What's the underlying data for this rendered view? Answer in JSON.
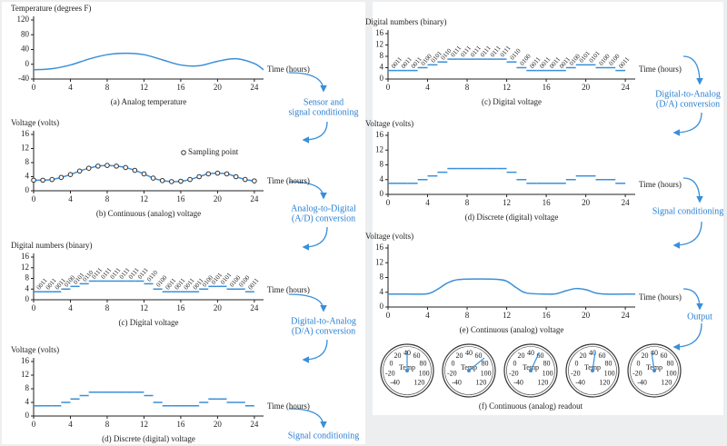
{
  "chart_data": [
    {
      "type": "line",
      "title": "Temperature (degrees F)",
      "xlabel": "Time (hours)",
      "caption": "(a) Analog temperature",
      "x": [
        0,
        2,
        4,
        6,
        8,
        10,
        12,
        14,
        16,
        18,
        20,
        22,
        24,
        25
      ],
      "series": [
        {
          "color": "#3a8fd9",
          "values": [
            -15,
            -12,
            -2,
            14,
            26,
            30,
            26,
            12,
            -2,
            -4,
            8,
            15,
            2,
            -15
          ]
        }
      ],
      "xlim": [
        0,
        25
      ],
      "ylim": [
        -40,
        120
      ],
      "xticks": [
        0,
        4,
        8,
        12,
        16,
        20,
        24
      ],
      "yticks": [
        -40,
        0,
        40,
        80,
        120
      ]
    },
    {
      "type": "line",
      "markers": true,
      "title": "Voltage (volts)",
      "xlabel": "Time (hours)",
      "caption": "(b) Continuous (analog) voltage",
      "x": [
        0,
        1,
        2,
        3,
        4,
        5,
        6,
        7,
        8,
        9,
        10,
        11,
        12,
        13,
        14,
        15,
        16,
        17,
        18,
        19,
        20,
        21,
        22,
        23,
        24
      ],
      "series": [
        {
          "name": "Sampling point",
          "color": "#3a8fd9",
          "values": [
            3,
            3,
            3.2,
            3.8,
            4.6,
            5.6,
            6.4,
            7,
            7.2,
            7,
            6.6,
            5.8,
            4.8,
            3.6,
            2.9,
            2.6,
            2.7,
            3.2,
            4,
            4.8,
            5,
            4.8,
            4,
            3.2,
            2.8
          ]
        }
      ],
      "xlim": [
        0,
        25
      ],
      "ylim": [
        0,
        16
      ],
      "xticks": [
        0,
        4,
        8,
        12,
        16,
        20,
        24
      ],
      "yticks": [
        0,
        4,
        8,
        12,
        16
      ]
    },
    {
      "type": "step",
      "title": "Digital numbers (binary)",
      "xlabel": "Time (hours)",
      "caption": "(c) Digital voltage",
      "x": [
        0,
        1,
        2,
        3,
        4,
        5,
        6,
        7,
        8,
        9,
        10,
        11,
        12,
        13,
        14,
        15,
        16,
        17,
        18,
        19,
        20,
        21,
        22,
        23
      ],
      "series": [
        {
          "color": "#3a8fd9",
          "values": [
            3,
            3,
            3,
            4,
            5,
            6,
            7,
            7,
            7,
            7,
            7,
            7,
            6,
            4,
            3,
            3,
            3,
            3,
            4,
            5,
            5,
            4,
            4,
            3
          ],
          "value_labels": [
            "0011",
            "0011",
            "0011",
            "0100",
            "0101",
            "0110",
            "0111",
            "0111",
            "0111",
            "0111",
            "0111",
            "0111",
            "0110",
            "0100",
            "0011",
            "0011",
            "0011",
            "0011",
            "0100",
            "0101",
            "0101",
            "0100",
            "0100",
            "0011"
          ]
        }
      ],
      "xlim": [
        0,
        25
      ],
      "ylim": [
        0,
        16
      ],
      "xticks": [
        0,
        4,
        8,
        12,
        16,
        20,
        24
      ],
      "yticks": [
        0,
        4,
        8,
        12,
        16
      ]
    },
    {
      "type": "step",
      "title": "Voltage (volts)",
      "xlabel": "Time (hours)",
      "caption": "(d) Discrete (digital) voltage",
      "x": [
        0,
        1,
        2,
        3,
        4,
        5,
        6,
        7,
        8,
        9,
        10,
        11,
        12,
        13,
        14,
        15,
        16,
        17,
        18,
        19,
        20,
        21,
        22,
        23
      ],
      "series": [
        {
          "color": "#3a8fd9",
          "values": [
            3,
            3,
            3,
            4,
            5,
            6,
            7,
            7,
            7,
            7,
            7,
            7,
            6,
            4,
            3,
            3,
            3,
            3,
            4,
            5,
            5,
            4,
            4,
            3
          ]
        }
      ],
      "xlim": [
        0,
        25
      ],
      "ylim": [
        0,
        16
      ],
      "xticks": [
        0,
        4,
        8,
        12,
        16,
        20,
        24
      ],
      "yticks": [
        0,
        4,
        8,
        12,
        16
      ]
    },
    {
      "type": "step",
      "title": "Digital numbers (binary)",
      "xlabel": "Time (hours)",
      "caption": "(c) Digital voltage",
      "x": [
        0,
        1,
        2,
        3,
        4,
        5,
        6,
        7,
        8,
        9,
        10,
        11,
        12,
        13,
        14,
        15,
        16,
        17,
        18,
        19,
        20,
        21,
        22,
        23
      ],
      "series": [
        {
          "color": "#3a8fd9",
          "values": [
            3,
            3,
            3,
            4,
            5,
            6,
            7,
            7,
            7,
            7,
            7,
            7,
            6,
            4,
            3,
            3,
            3,
            3,
            4,
            5,
            5,
            4,
            4,
            3
          ],
          "value_labels": [
            "0011",
            "0011",
            "0011",
            "0100",
            "0101",
            "0110",
            "0111",
            "0111",
            "0111",
            "0111",
            "0111",
            "0111",
            "0110",
            "0100",
            "0011",
            "0011",
            "0011",
            "0011",
            "0100",
            "0101",
            "0101",
            "0100",
            "0100",
            "0011"
          ]
        }
      ],
      "xlim": [
        0,
        25
      ],
      "ylim": [
        0,
        16
      ],
      "xticks": [
        0,
        4,
        8,
        12,
        16,
        20,
        24
      ],
      "yticks": [
        0,
        4,
        8,
        12,
        16
      ]
    },
    {
      "type": "step",
      "title": "Voltage (volts)",
      "xlabel": "Time (hours)",
      "caption": "(d) Discrete (digital) voltage",
      "x": [
        0,
        1,
        2,
        3,
        4,
        5,
        6,
        7,
        8,
        9,
        10,
        11,
        12,
        13,
        14,
        15,
        16,
        17,
        18,
        19,
        20,
        21,
        22,
        23
      ],
      "series": [
        {
          "color": "#3a8fd9",
          "values": [
            3,
            3,
            3,
            4,
            5,
            6,
            7,
            7,
            7,
            7,
            7,
            7,
            6,
            4,
            3,
            3,
            3,
            3,
            4,
            5,
            5,
            4,
            4,
            3
          ]
        }
      ],
      "xlim": [
        0,
        25
      ],
      "ylim": [
        0,
        16
      ],
      "xticks": [
        0,
        4,
        8,
        12,
        16,
        20,
        24
      ],
      "yticks": [
        0,
        4,
        8,
        12,
        16
      ]
    },
    {
      "type": "line",
      "title": "Voltage (volts)",
      "xlabel": "Time (hours)",
      "caption": "(e) Continuous (analog) voltage",
      "x": [
        0,
        2,
        4,
        5,
        6,
        7,
        9,
        11,
        12,
        13,
        14,
        16,
        17,
        18,
        19,
        20,
        21,
        22,
        24,
        25
      ],
      "series": [
        {
          "color": "#3a8fd9",
          "values": [
            3.5,
            3.5,
            3.6,
            4.8,
            6.5,
            7.4,
            7.6,
            7.5,
            7,
            5.2,
            3.8,
            3.5,
            3.6,
            4.4,
            5,
            4.7,
            3.8,
            3.5,
            3.5,
            3.5
          ]
        }
      ],
      "xlim": [
        0,
        25
      ],
      "ylim": [
        0,
        16
      ],
      "xticks": [
        0,
        4,
        8,
        12,
        16,
        20,
        24
      ],
      "yticks": [
        0,
        4,
        8,
        12,
        16
      ]
    }
  ],
  "flow": [
    {
      "lines": [
        "Sensor and",
        "signal conditioning"
      ]
    },
    {
      "lines": [
        "Analog-to-Digital",
        "(A/D) conversion"
      ]
    },
    {
      "lines": [
        "Digital-to-Analog",
        "(D/A) conversion"
      ]
    },
    {
      "lines": [
        "Signal conditioning"
      ]
    },
    {
      "lines": [
        "Digital-to-Analog",
        "(D/A) conversion"
      ]
    },
    {
      "lines": [
        "Signal conditioning"
      ]
    },
    {
      "lines": [
        "Output"
      ]
    }
  ],
  "readout": {
    "caption": "(f) Continuous (analog) readout",
    "center_label": "Temp",
    "lim": [
      -40,
      120
    ],
    "scale": [
      -40,
      -20,
      0,
      20,
      40,
      60,
      80,
      100,
      120
    ],
    "values": [
      40,
      70,
      55,
      45,
      35
    ]
  }
}
